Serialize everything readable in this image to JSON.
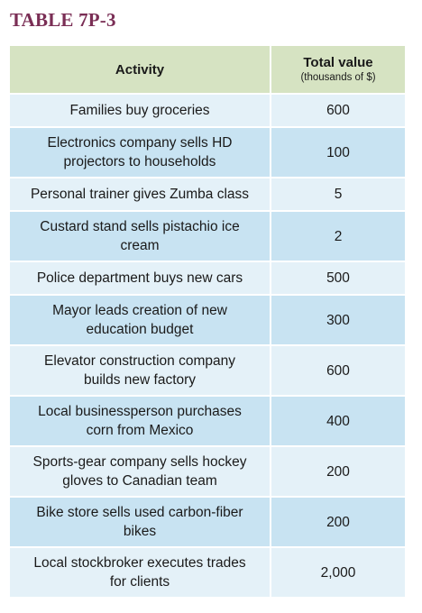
{
  "title": "TABLE 7P-3",
  "colors": {
    "title": "#7a2e55",
    "header_bg": "#d6e3c2",
    "row_light": "#e4f1f8",
    "row_dark": "#c8e3f2"
  },
  "table": {
    "headers": {
      "activity": "Activity",
      "value": "Total value",
      "value_unit": "(thousands of $)"
    },
    "rows": [
      {
        "activity": "Families buy groceries",
        "value": "600"
      },
      {
        "activity": "Electronics company sells HD projectors to households",
        "value": "100"
      },
      {
        "activity": "Personal trainer gives Zumba class",
        "value": "5"
      },
      {
        "activity": "Custard stand sells pistachio ice cream",
        "value": "2"
      },
      {
        "activity": "Police department buys new cars",
        "value": "500"
      },
      {
        "activity": "Mayor leads creation of new education budget",
        "value": "300"
      },
      {
        "activity": "Elevator construction company builds new factory",
        "value": "600"
      },
      {
        "activity": "Local businessperson purchases corn from Mexico",
        "value": "400"
      },
      {
        "activity": "Sports-gear company sells hockey gloves to Canadian team",
        "value": "200"
      },
      {
        "activity": "Bike store sells used carbon-fiber bikes",
        "value": "200"
      },
      {
        "activity": "Local stockbroker executes trades for clients",
        "value": "2,000"
      }
    ]
  }
}
